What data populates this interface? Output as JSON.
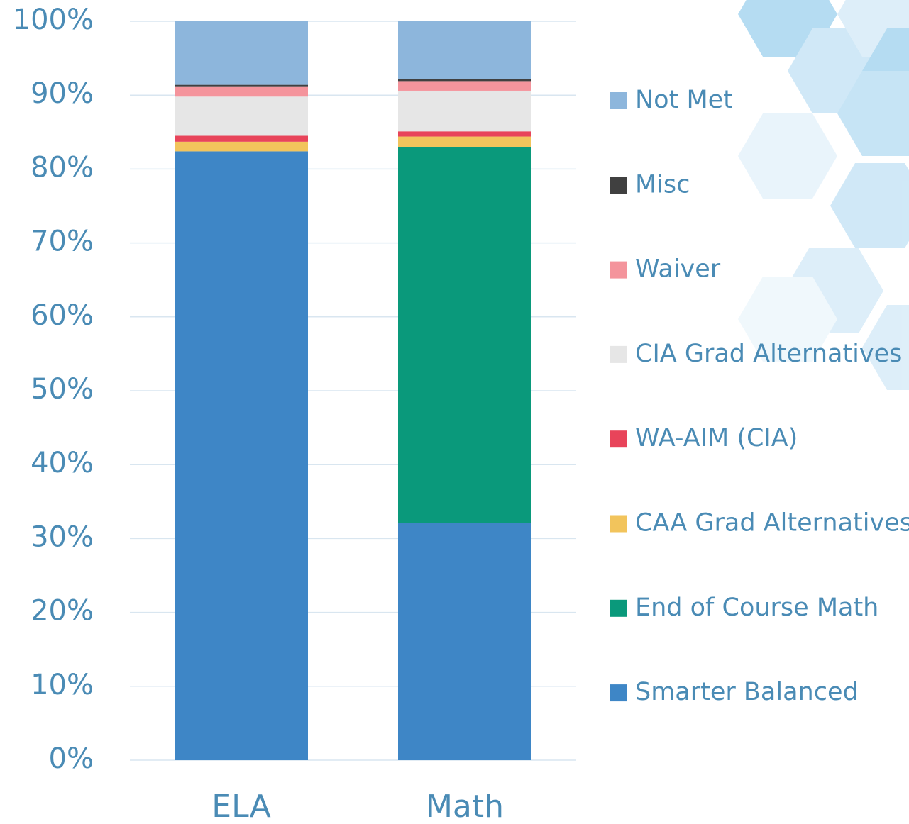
{
  "chart_data": {
    "type": "stacked_bar",
    "categories": [
      "ELA",
      "Math"
    ],
    "series": [
      {
        "name": "Smarter Balanced",
        "color": "#3e86c6",
        "values": [
          82.4,
          32.1
        ]
      },
      {
        "name": "End of Course Math",
        "color": "#0a997b",
        "values": [
          0,
          50.9
        ]
      },
      {
        "name": "CAA Grad Alternatives",
        "color": "#f2c45c",
        "values": [
          1.3,
          1.4
        ]
      },
      {
        "name": "WA-AIM (CIA)",
        "color": "#e8445a",
        "values": [
          0.8,
          0.7
        ]
      },
      {
        "name": "CIA Grad Alternatives",
        "color": "#e6e6e6",
        "values": [
          5.3,
          5.5
        ]
      },
      {
        "name": "Waiver",
        "color": "#f4949c",
        "values": [
          1.4,
          1.3
        ]
      },
      {
        "name": "Misc",
        "color": "#404040",
        "values": [
          0.2,
          0.3
        ]
      },
      {
        "name": "Not Met",
        "color": "#8db6dc",
        "values": [
          8.6,
          7.8
        ]
      }
    ],
    "ylim": [
      0,
      100
    ],
    "yticks": [
      {
        "value": 0,
        "label": "0%"
      },
      {
        "value": 10,
        "label": "10%"
      },
      {
        "value": 20,
        "label": "20%"
      },
      {
        "value": 30,
        "label": "30%"
      },
      {
        "value": 40,
        "label": "40%"
      },
      {
        "value": 50,
        "label": "50%"
      },
      {
        "value": 60,
        "label": "60%"
      },
      {
        "value": 70,
        "label": "70%"
      },
      {
        "value": 80,
        "label": "80%"
      },
      {
        "value": 90,
        "label": "90%"
      },
      {
        "value": 100,
        "label": "100%"
      }
    ],
    "grid": true,
    "legend": "right"
  }
}
